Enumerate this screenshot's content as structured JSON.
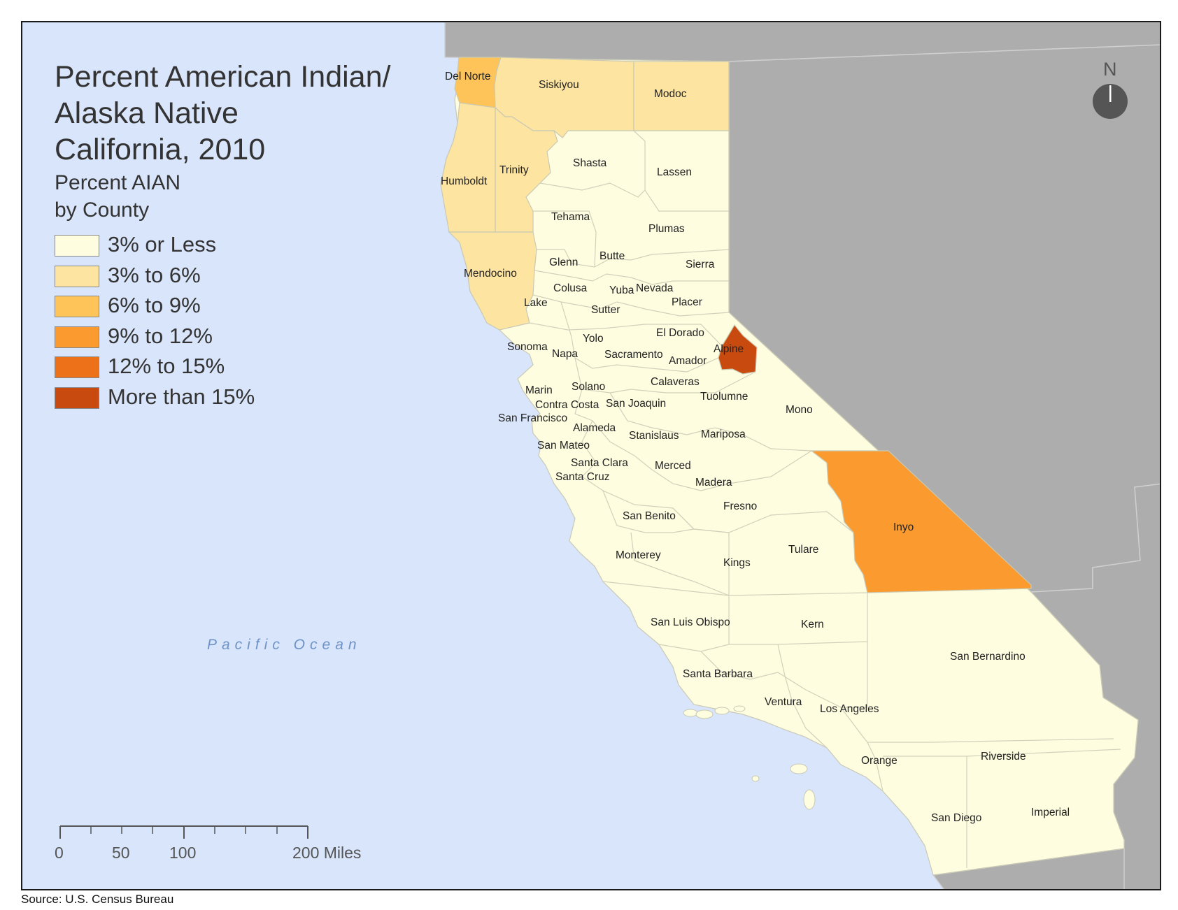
{
  "map": {
    "title_lines": [
      "Percent American Indian/",
      "Alaska Native",
      "California, 2010"
    ],
    "subtitle_lines": [
      "Percent AIAN",
      "by County"
    ],
    "legend": [
      {
        "label": "3% or Less",
        "color": "#fefde0"
      },
      {
        "label": "3% to 6%",
        "color": "#fde4a0"
      },
      {
        "label": "6% to 9%",
        "color": "#fec45a"
      },
      {
        "label": "9% to 12%",
        "color": "#fb9a2e"
      },
      {
        "label": "12% to 15%",
        "color": "#ec7118"
      },
      {
        "label": "More than 15%",
        "color": "#c84a0e"
      }
    ],
    "ocean_label": "Pacific Ocean",
    "north_label": "N",
    "scale": {
      "ticks": [
        "0",
        "50",
        "100",
        "200 Miles"
      ]
    },
    "source": "Source: U.S. Census Bureau",
    "colors": {
      "ocean": "#d9e5fa",
      "neighbor_land": "#adadad",
      "county_border": "#c9c9b4",
      "state_border": "#cfcfcf"
    },
    "counties": [
      {
        "name": "Del Norte",
        "category": "6% to 9%"
      },
      {
        "name": "Siskiyou",
        "category": "3% to 6%"
      },
      {
        "name": "Modoc",
        "category": "3% to 6%"
      },
      {
        "name": "Humboldt",
        "category": "3% to 6%"
      },
      {
        "name": "Trinity",
        "category": "3% to 6%"
      },
      {
        "name": "Mendocino",
        "category": "3% to 6%"
      },
      {
        "name": "Shasta",
        "category": "3% or Less"
      },
      {
        "name": "Lassen",
        "category": "3% or Less"
      },
      {
        "name": "Tehama",
        "category": "3% or Less"
      },
      {
        "name": "Plumas",
        "category": "3% or Less"
      },
      {
        "name": "Glenn",
        "category": "3% or Less"
      },
      {
        "name": "Butte",
        "category": "3% or Less"
      },
      {
        "name": "Sierra",
        "category": "3% or Less"
      },
      {
        "name": "Colusa",
        "category": "3% or Less"
      },
      {
        "name": "Yuba",
        "category": "3% or Less"
      },
      {
        "name": "Nevada",
        "category": "3% or Less"
      },
      {
        "name": "Lake",
        "category": "3% or Less"
      },
      {
        "name": "Sutter",
        "category": "3% or Less"
      },
      {
        "name": "Placer",
        "category": "3% or Less"
      },
      {
        "name": "El Dorado",
        "category": "3% or Less"
      },
      {
        "name": "Alpine",
        "category": "More than 15%"
      },
      {
        "name": "Sonoma",
        "category": "3% or Less"
      },
      {
        "name": "Yolo",
        "category": "3% or Less"
      },
      {
        "name": "Napa",
        "category": "3% or Less"
      },
      {
        "name": "Sacramento",
        "category": "3% or Less"
      },
      {
        "name": "Amador",
        "category": "3% or Less"
      },
      {
        "name": "Calaveras",
        "category": "3% or Less"
      },
      {
        "name": "Marin",
        "category": "3% or Less"
      },
      {
        "name": "Solano",
        "category": "3% or Less"
      },
      {
        "name": "Tuolumne",
        "category": "3% or Less"
      },
      {
        "name": "Contra Costa",
        "category": "3% or Less"
      },
      {
        "name": "San Joaquin",
        "category": "3% or Less"
      },
      {
        "name": "Mono",
        "category": "3% or Less"
      },
      {
        "name": "San Francisco",
        "category": "3% or Less"
      },
      {
        "name": "Alameda",
        "category": "3% or Less"
      },
      {
        "name": "Stanislaus",
        "category": "3% or Less"
      },
      {
        "name": "Mariposa",
        "category": "3% or Less"
      },
      {
        "name": "San Mateo",
        "category": "3% or Less"
      },
      {
        "name": "Santa Clara",
        "category": "3% or Less"
      },
      {
        "name": "Merced",
        "category": "3% or Less"
      },
      {
        "name": "Santa Cruz",
        "category": "3% or Less"
      },
      {
        "name": "Madera",
        "category": "3% or Less"
      },
      {
        "name": "Fresno",
        "category": "3% or Less"
      },
      {
        "name": "Inyo",
        "category": "9% to 12%"
      },
      {
        "name": "San Benito",
        "category": "3% or Less"
      },
      {
        "name": "Tulare",
        "category": "3% or Less"
      },
      {
        "name": "Monterey",
        "category": "3% or Less"
      },
      {
        "name": "Kings",
        "category": "3% or Less"
      },
      {
        "name": "San Luis Obispo",
        "category": "3% or Less"
      },
      {
        "name": "Kern",
        "category": "3% or Less"
      },
      {
        "name": "San Bernardino",
        "category": "3% or Less"
      },
      {
        "name": "Santa Barbara",
        "category": "3% or Less"
      },
      {
        "name": "Ventura",
        "category": "3% or Less"
      },
      {
        "name": "Los Angeles",
        "category": "3% or Less"
      },
      {
        "name": "Orange",
        "category": "3% or Less"
      },
      {
        "name": "Riverside",
        "category": "3% or Less"
      },
      {
        "name": "San Diego",
        "category": "3% or Less"
      },
      {
        "name": "Imperial",
        "category": "3% or Less"
      }
    ]
  }
}
